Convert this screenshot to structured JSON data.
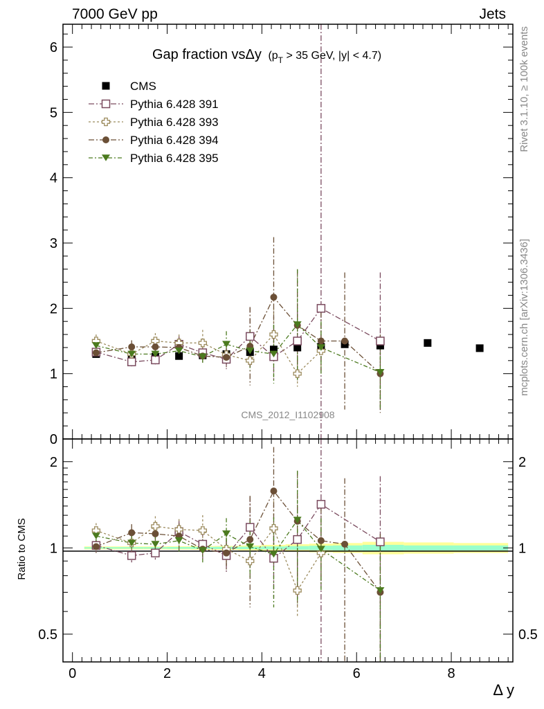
{
  "header": {
    "left": "7000 GeV pp",
    "right": "Jets",
    "side_version": "Rivet 3.1.10, ≥ 100k events",
    "side_source": "mcplots.cern.ch [arXiv:1306.3436]",
    "watermark": "CMS_2012_I1102908"
  },
  "chart_data": [
    {
      "type": "scatter",
      "panel": "main",
      "title": "Gap fraction vsΔy",
      "title_suffix_1": "(p",
      "title_suffix_sub": "T",
      "title_suffix_2": " > 35 GeV, |y| < 4.7)",
      "xlabel": "Δ y",
      "ylabel": "",
      "xlim": [
        -0.2,
        9.3
      ],
      "ylim": [
        0,
        6.35
      ],
      "y_ticks": [
        "0",
        "1",
        "2",
        "3",
        "4",
        "5",
        "6"
      ],
      "x_ticks": [
        "0",
        "2",
        "4",
        "6",
        "8"
      ],
      "legend_position": "top-left",
      "series": [
        {
          "name": "CMS",
          "color": "#000000",
          "marker": "filled-square",
          "x": [
            0.5,
            1.25,
            1.75,
            2.25,
            2.75,
            3.25,
            3.75,
            4.25,
            4.75,
            5.25,
            5.75,
            6.5,
            7.5,
            8.6
          ],
          "y": [
            1.3,
            1.25,
            1.26,
            1.27,
            1.28,
            1.3,
            1.33,
            1.37,
            1.4,
            1.41,
            1.45,
            1.43,
            1.47,
            1.39
          ]
        },
        {
          "name": "Pythia 6.428 391",
          "color": "#7a4a5e",
          "marker": "open-square",
          "x": [
            0.5,
            1.25,
            1.75,
            2.25,
            2.75,
            3.25,
            3.75,
            4.25,
            4.75,
            5.25,
            6.5
          ],
          "y": [
            1.33,
            1.18,
            1.21,
            1.45,
            1.32,
            1.22,
            1.57,
            1.26,
            1.5,
            2.0,
            1.5
          ],
          "err": [
            0.08,
            0.07,
            0.07,
            0.12,
            0.14,
            0.15,
            0.45,
            0.35,
            0.45,
            4.8,
            1.05
          ]
        },
        {
          "name": "Pythia 6.428 393",
          "color": "#9b8a5c",
          "marker": "open-cross",
          "x": [
            0.5,
            1.25,
            1.75,
            2.25,
            2.75,
            3.25,
            3.75,
            4.25,
            4.75,
            5.25
          ],
          "y": [
            1.5,
            1.3,
            1.5,
            1.47,
            1.47,
            1.29,
            1.2,
            1.6,
            1.0,
            1.35
          ],
          "err": [
            0.1,
            0.08,
            0.12,
            0.13,
            0.2,
            0.15,
            0.12,
            0.4,
            0.2,
            0.3
          ]
        },
        {
          "name": "Pythia 6.428 394",
          "color": "#6b4f36",
          "marker": "filled-circle",
          "x": [
            0.5,
            1.25,
            1.75,
            2.25,
            2.75,
            3.25,
            3.75,
            4.25,
            4.75,
            5.25,
            5.75,
            6.5
          ],
          "y": [
            1.32,
            1.41,
            1.41,
            1.4,
            1.27,
            1.25,
            1.42,
            2.17,
            1.74,
            1.5,
            1.5,
            1.0
          ],
          "err": [
            0.06,
            0.1,
            0.12,
            0.15,
            0.1,
            0.15,
            0.6,
            0.92,
            0.85,
            0.45,
            1.05,
            0.6
          ]
        },
        {
          "name": "Pythia 6.428 395",
          "color": "#4b7a1e",
          "marker": "filled-triangle-down",
          "x": [
            0.5,
            1.25,
            1.75,
            2.25,
            2.75,
            3.25,
            3.75,
            4.25,
            4.75,
            5.25,
            6.5
          ],
          "y": [
            1.43,
            1.3,
            1.3,
            1.35,
            1.26,
            1.45,
            1.35,
            1.3,
            1.75,
            1.4,
            1.02
          ],
          "err": [
            0.08,
            0.09,
            0.1,
            0.12,
            0.12,
            0.2,
            0.3,
            0.45,
            0.85,
            0.4,
            0.55
          ]
        }
      ]
    },
    {
      "type": "scatter",
      "panel": "ratio",
      "ylabel": "Ratio to CMS",
      "xlabel": "Δ y",
      "xlim": [
        -0.2,
        9.3
      ],
      "y_scale": "log",
      "ylim": [
        0.4,
        2.4
      ],
      "y_ticks": [
        "0.5",
        "1",
        "2"
      ],
      "x_ticks": [
        "0",
        "2",
        "4",
        "6",
        "8"
      ],
      "band": {
        "x": [
          0.5,
          1.25,
          1.75,
          2.25,
          2.75,
          3.25,
          3.75,
          4.25,
          4.75,
          5.25,
          5.75,
          6.5,
          7.5,
          8.6
        ],
        "stat": [
          0.006,
          0.006,
          0.006,
          0.007,
          0.008,
          0.009,
          0.01,
          0.012,
          0.015,
          0.018,
          0.02,
          0.025,
          0.02,
          0.02
        ],
        "total": [
          0.012,
          0.012,
          0.012,
          0.013,
          0.015,
          0.016,
          0.02,
          0.025,
          0.03,
          0.035,
          0.04,
          0.05,
          0.045,
          0.04
        ],
        "colors": {
          "total": "#ffff99",
          "stat": "#99ffcc"
        }
      },
      "series": [
        {
          "name": "Pythia 6.428 391",
          "x": [
            0.5,
            1.25,
            1.75,
            2.25,
            2.75,
            3.25,
            3.75,
            4.25,
            4.75,
            5.25,
            6.5
          ],
          "y": [
            1.02,
            0.94,
            0.96,
            1.14,
            1.03,
            0.94,
            1.18,
            0.92,
            1.07,
            1.42,
            1.05
          ],
          "err": [
            0.05,
            0.05,
            0.05,
            0.1,
            0.11,
            0.12,
            0.33,
            0.25,
            0.32,
            3.4,
            0.73
          ]
        },
        {
          "name": "Pythia 6.428 393",
          "x": [
            0.5,
            1.25,
            1.75,
            2.25,
            2.75,
            3.25,
            3.75,
            4.25,
            4.75,
            5.25
          ],
          "y": [
            1.15,
            1.04,
            1.19,
            1.16,
            1.15,
            0.99,
            0.9,
            1.17,
            0.71,
            0.96
          ],
          "err": [
            0.07,
            0.07,
            0.1,
            0.1,
            0.15,
            0.12,
            0.09,
            0.29,
            0.14,
            0.21
          ]
        },
        {
          "name": "Pythia 6.428 394",
          "x": [
            0.5,
            1.25,
            1.75,
            2.25,
            2.75,
            3.25,
            3.75,
            4.25,
            4.75,
            5.25,
            5.75,
            6.5
          ],
          "y": [
            1.01,
            1.13,
            1.12,
            1.1,
            0.99,
            0.96,
            1.07,
            1.58,
            1.24,
            1.06,
            1.03,
            0.7
          ],
          "err": [
            0.05,
            0.08,
            0.09,
            0.12,
            0.08,
            0.12,
            0.45,
            0.67,
            0.61,
            0.32,
            0.72,
            0.42
          ]
        },
        {
          "name": "Pythia 6.428 395",
          "x": [
            0.5,
            1.25,
            1.75,
            2.25,
            2.75,
            3.25,
            3.75,
            4.25,
            4.75,
            5.25,
            6.5
          ],
          "y": [
            1.1,
            1.04,
            1.03,
            1.06,
            0.98,
            1.12,
            1.01,
            0.95,
            1.25,
            0.99,
            0.71
          ],
          "err": [
            0.06,
            0.07,
            0.08,
            0.09,
            0.09,
            0.15,
            0.23,
            0.33,
            0.61,
            0.28,
            0.38
          ]
        }
      ]
    }
  ]
}
